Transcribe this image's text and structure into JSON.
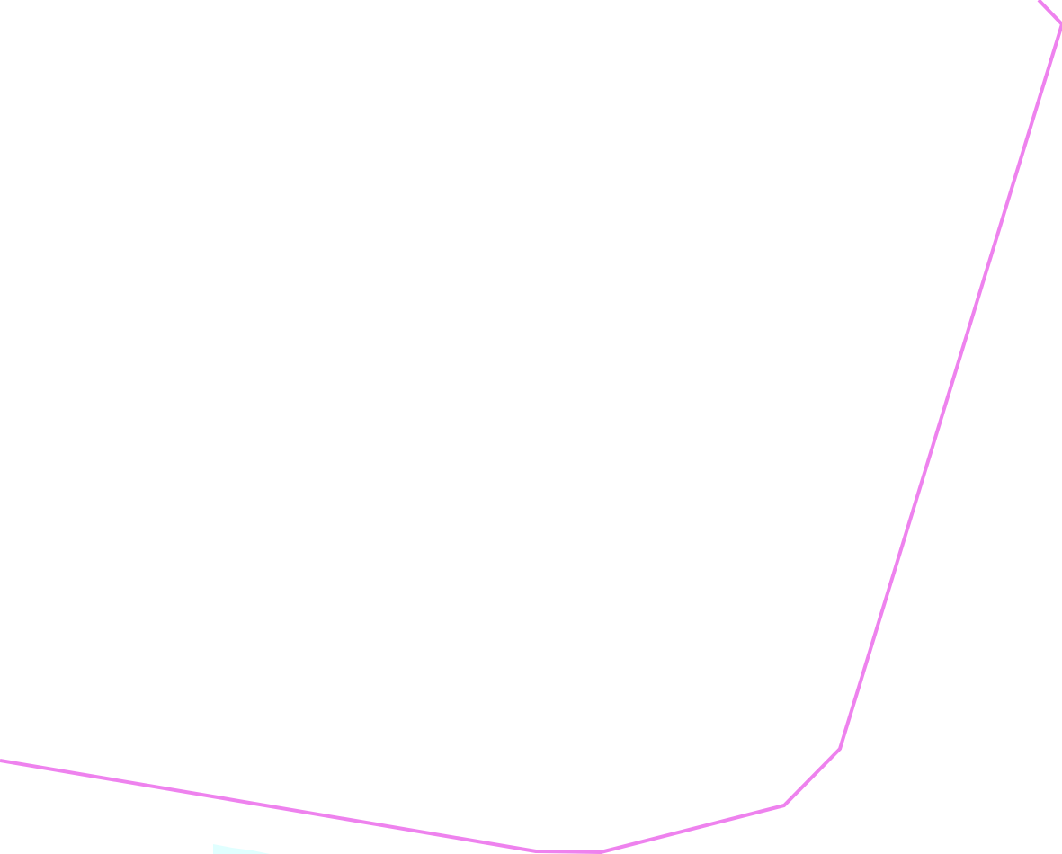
{
  "map": {
    "background_color": "#ffffff",
    "boundary": {
      "stroke_color": "#ee82ee"
    },
    "water_patch": {
      "fill_color": "#e0ffff"
    }
  }
}
